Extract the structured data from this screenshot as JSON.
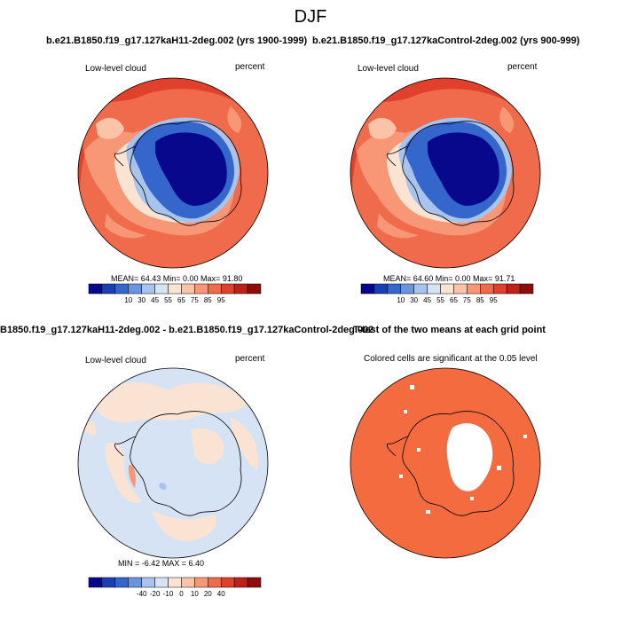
{
  "title": "DJF",
  "panels": [
    {
      "title": "b.e21.B1850.f19_g17.127kaH11-2deg.002 (yrs 1900-1999)",
      "variable": "Low-level cloud",
      "units": "percent",
      "stats": "MEAN= 64.43  Min=   0.00  Max=  91.80",
      "colorbar_labels": [
        "10",
        "30",
        "45",
        "55",
        "65",
        "75",
        "85",
        "95"
      ]
    },
    {
      "title": "b.e21.B1850.f19_g17.127kaControl-2deg.002 (yrs 900-999)",
      "variable": "Low-level cloud",
      "units": "percent",
      "stats": "MEAN= 64.60  Min=   0.00  Max=  91.71",
      "colorbar_labels": [
        "10",
        "30",
        "45",
        "55",
        "65",
        "75",
        "85",
        "95"
      ]
    },
    {
      "title": "B1850.f19_g17.127kaH11-2deg.002 - b.e21.B1850.f19_g17.127kaControl-2deg.002",
      "variable": "Low-level cloud",
      "units": "percent",
      "stats": "MIN =  -6.42  MAX =   6.40",
      "colorbar_labels": [
        "-40",
        "-20",
        "-10",
        "0",
        "10",
        "20",
        "40"
      ]
    },
    {
      "title": "T-test of the two means at each grid point",
      "subtitle": "Colored cells are significant at the 0.05 level"
    }
  ],
  "colors": {
    "abs_scale": [
      "#08088c",
      "#1a3fb5",
      "#3566cc",
      "#6c94dd",
      "#a9c4ec",
      "#d6e3f5",
      "#fbe3d3",
      "#fbc4a8",
      "#f79775",
      "#f06a4c",
      "#e0402c",
      "#c0201a",
      "#8f0c0c"
    ],
    "diff_scale": [
      "#08088c",
      "#1a3fb5",
      "#3566cc",
      "#6c94dd",
      "#a9c4ec",
      "#d6e3f5",
      "#fbe3d3",
      "#fbc4a8",
      "#f79775",
      "#f06a4c",
      "#e0402c",
      "#c0201a",
      "#8f0c0c"
    ],
    "significant": "#f36b3e"
  }
}
